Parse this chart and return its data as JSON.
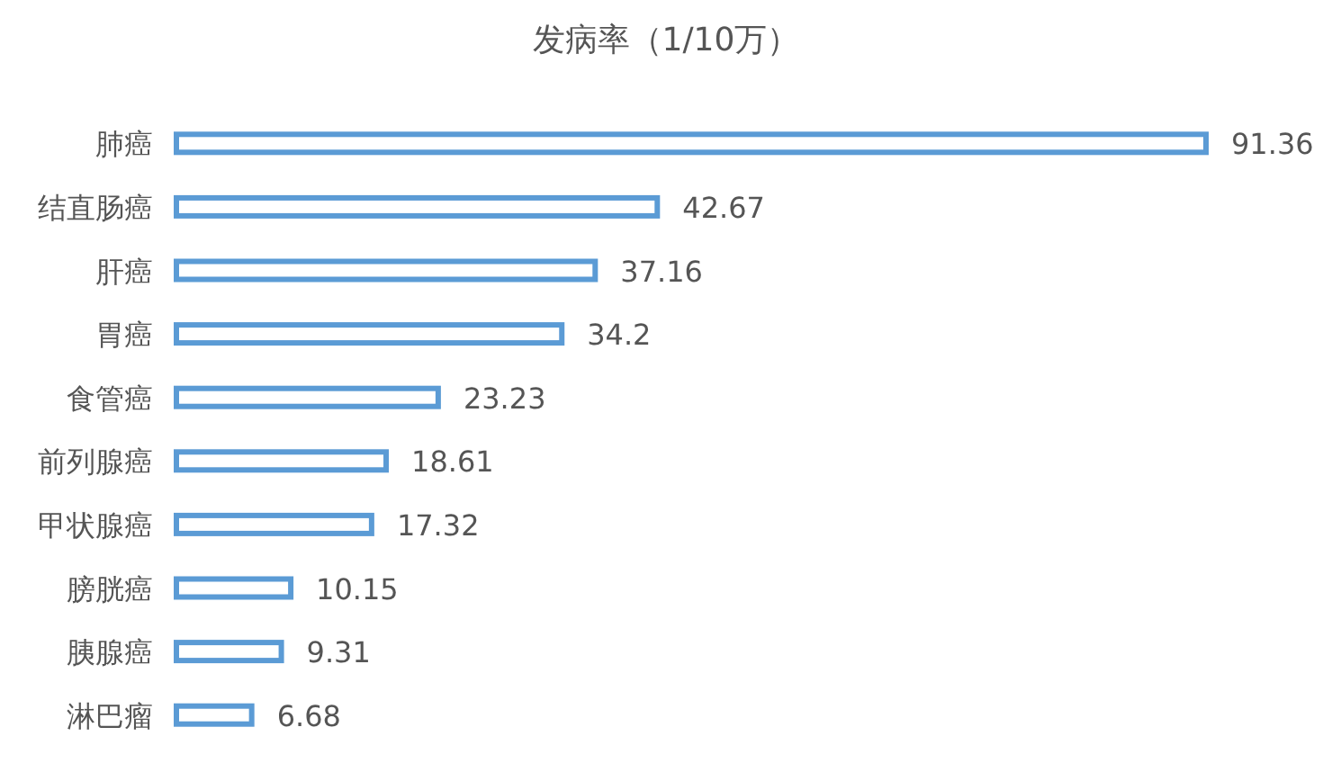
{
  "chart_data": {
    "type": "bar",
    "orientation": "horizontal",
    "title": "发病率（1/10万）",
    "categories": [
      "肺癌",
      "结直肠癌",
      "肝癌",
      "胃癌",
      "食管癌",
      "前列腺癌",
      "甲状腺癌",
      "膀胱癌",
      "胰腺癌",
      "淋巴瘤"
    ],
    "values": [
      91.36,
      42.67,
      37.16,
      34.2,
      23.23,
      18.61,
      17.32,
      10.15,
      9.31,
      6.68
    ],
    "color": "#5b9bd5",
    "data_labels": true
  }
}
